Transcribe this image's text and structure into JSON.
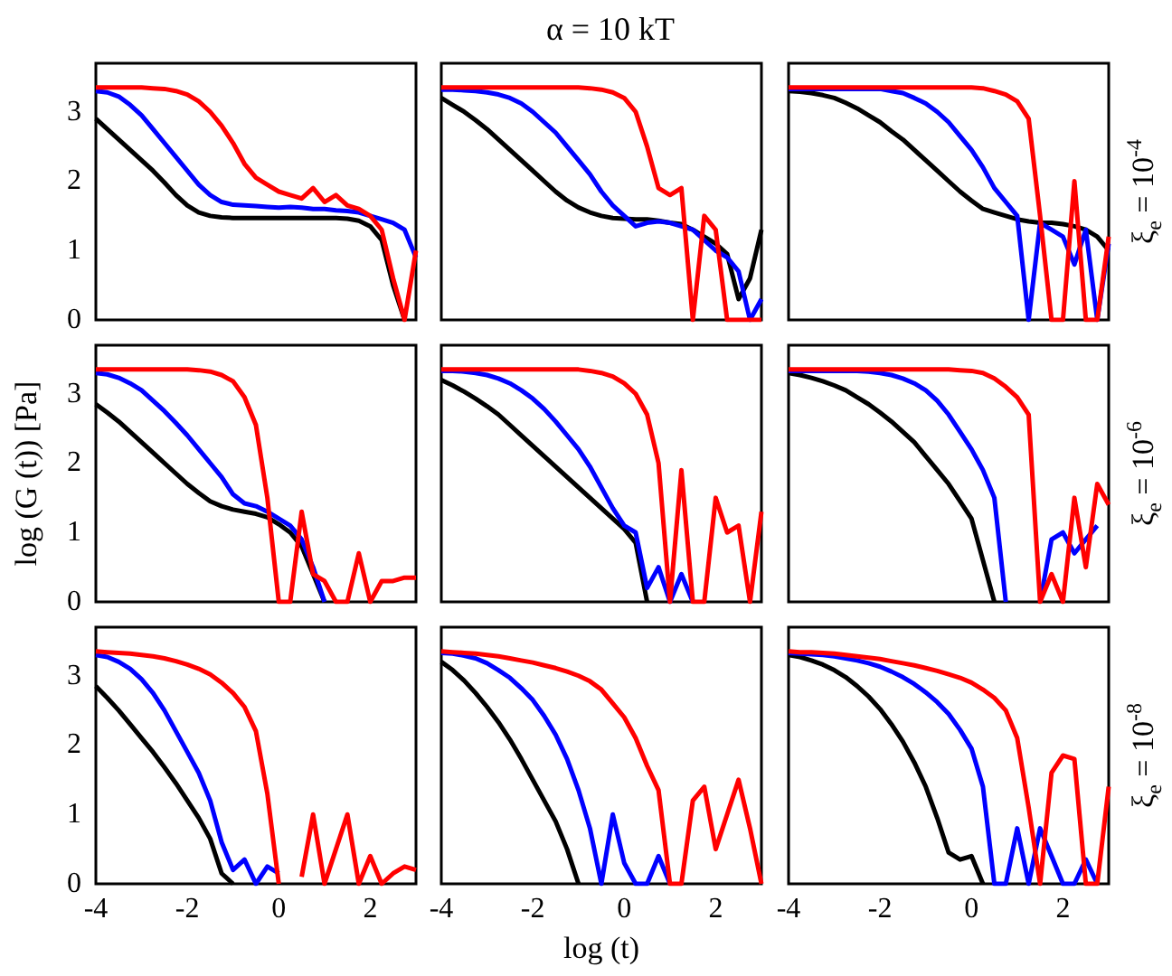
{
  "chart_data": [
    {
      "type": "line",
      "tick_labels": "y",
      "xlim": [
        -4,
        3
      ],
      "xticks": [
        -4,
        -2,
        0,
        2
      ],
      "ylim": [
        0,
        3.7
      ],
      "yticks": [
        0,
        1,
        2,
        3
      ],
      "x": [
        -4,
        -3.75,
        -3.5,
        -3.25,
        -3,
        -2.75,
        -2.5,
        -2.25,
        -2,
        -1.75,
        -1.5,
        -1.25,
        -1,
        -0.75,
        -0.5,
        -0.25,
        0,
        0.25,
        0.5,
        0.75,
        1,
        1.25,
        1.5,
        1.75,
        2,
        2.25,
        2.5,
        2.75,
        3
      ],
      "series": [
        {
          "color": "#000000",
          "values": [
            2.9,
            2.75,
            2.6,
            2.45,
            2.3,
            2.15,
            1.98,
            1.8,
            1.65,
            1.55,
            1.5,
            1.48,
            1.47,
            1.47,
            1.47,
            1.47,
            1.47,
            1.47,
            1.47,
            1.47,
            1.47,
            1.47,
            1.46,
            1.43,
            1.35,
            1.15,
            0.5,
            0,
            null
          ]
        },
        {
          "color": "#0000ff",
          "values": [
            3.3,
            3.28,
            3.22,
            3.1,
            2.95,
            2.75,
            2.55,
            2.35,
            2.15,
            1.95,
            1.8,
            1.7,
            1.66,
            1.65,
            1.64,
            1.63,
            1.62,
            1.63,
            1.62,
            1.6,
            1.6,
            1.58,
            1.57,
            1.55,
            1.5,
            1.45,
            1.4,
            1.3,
            0.9
          ]
        },
        {
          "color": "#ff0000",
          "values": [
            3.35,
            3.35,
            3.35,
            3.35,
            3.35,
            3.34,
            3.33,
            3.3,
            3.25,
            3.15,
            3.0,
            2.8,
            2.55,
            2.25,
            2.05,
            1.95,
            1.85,
            1.8,
            1.75,
            1.9,
            1.7,
            1.8,
            1.65,
            1.6,
            1.5,
            1.3,
            0.6,
            0,
            1.0
          ]
        }
      ]
    },
    {
      "type": "line",
      "title": "α = 10 kT",
      "tick_labels": false,
      "xlim": [
        -4,
        3
      ],
      "xticks": [
        -4,
        -2,
        0,
        2
      ],
      "ylim": [
        0,
        3.7
      ],
      "yticks": [
        0,
        1,
        2,
        3
      ],
      "x": [
        -4,
        -3.75,
        -3.5,
        -3.25,
        -3,
        -2.75,
        -2.5,
        -2.25,
        -2,
        -1.75,
        -1.5,
        -1.25,
        -1,
        -0.75,
        -0.5,
        -0.25,
        0,
        0.25,
        0.5,
        0.75,
        1,
        1.25,
        1.5,
        1.75,
        2,
        2.25,
        2.5,
        2.75,
        3
      ],
      "series": [
        {
          "color": "#000000",
          "values": [
            3.2,
            3.1,
            3.0,
            2.88,
            2.75,
            2.6,
            2.45,
            2.3,
            2.15,
            2.0,
            1.85,
            1.72,
            1.62,
            1.55,
            1.5,
            1.47,
            1.46,
            1.45,
            1.45,
            1.43,
            1.4,
            1.38,
            1.3,
            1.2,
            1.1,
            0.95,
            0.3,
            0.6,
            1.3
          ]
        },
        {
          "color": "#0000ff",
          "values": [
            3.32,
            3.32,
            3.31,
            3.3,
            3.28,
            3.25,
            3.2,
            3.12,
            3.0,
            2.85,
            2.7,
            2.5,
            2.3,
            2.1,
            1.85,
            1.65,
            1.5,
            1.35,
            1.4,
            1.42,
            1.4,
            1.35,
            1.3,
            1.15,
            1.0,
            0.9,
            0.7,
            0,
            0.3
          ]
        },
        {
          "color": "#ff0000",
          "values": [
            3.35,
            3.35,
            3.35,
            3.35,
            3.35,
            3.35,
            3.35,
            3.35,
            3.35,
            3.35,
            3.35,
            3.35,
            3.35,
            3.34,
            3.32,
            3.28,
            3.2,
            3.0,
            2.5,
            1.9,
            1.8,
            1.9,
            0,
            1.5,
            1.3,
            0,
            0,
            0,
            0
          ]
        }
      ]
    },
    {
      "type": "line",
      "y2label": "ξ$_{e}$ = 10$^{-4}$",
      "tick_labels": false,
      "xlim": [
        -4,
        3
      ],
      "xticks": [
        -4,
        -2,
        0,
        2
      ],
      "ylim": [
        0,
        3.7
      ],
      "yticks": [
        0,
        1,
        2,
        3
      ],
      "x": [
        -4,
        -3.75,
        -3.5,
        -3.25,
        -3,
        -2.75,
        -2.5,
        -2.25,
        -2,
        -1.75,
        -1.5,
        -1.25,
        -1,
        -0.75,
        -0.5,
        -0.25,
        0,
        0.25,
        0.5,
        0.75,
        1,
        1.25,
        1.5,
        1.75,
        2,
        2.25,
        2.5,
        2.75,
        3
      ],
      "series": [
        {
          "color": "#000000",
          "values": [
            3.3,
            3.29,
            3.27,
            3.24,
            3.2,
            3.13,
            3.05,
            2.95,
            2.85,
            2.72,
            2.6,
            2.45,
            2.3,
            2.15,
            2.0,
            1.85,
            1.72,
            1.6,
            1.55,
            1.5,
            1.45,
            1.42,
            1.4,
            1.4,
            1.38,
            1.35,
            1.3,
            1.2,
            1.0
          ]
        },
        {
          "color": "#0000ff",
          "values": [
            3.33,
            3.33,
            3.33,
            3.33,
            3.33,
            3.33,
            3.33,
            3.33,
            3.33,
            3.3,
            3.27,
            3.2,
            3.12,
            3.0,
            2.85,
            2.65,
            2.45,
            2.2,
            1.9,
            1.7,
            1.5,
            0,
            1.4,
            1.3,
            1.2,
            0.8,
            1.3,
            0,
            1.1
          ]
        },
        {
          "color": "#ff0000",
          "values": [
            3.35,
            3.35,
            3.35,
            3.35,
            3.35,
            3.35,
            3.35,
            3.35,
            3.35,
            3.35,
            3.35,
            3.35,
            3.35,
            3.35,
            3.35,
            3.35,
            3.35,
            3.34,
            3.3,
            3.25,
            3.15,
            2.9,
            1.5,
            0,
            0,
            2.0,
            0,
            0,
            1.2
          ]
        }
      ]
    },
    {
      "type": "line",
      "ylabel": "log (G (t)) [Pa]",
      "tick_labels": "y",
      "xlim": [
        -4,
        3
      ],
      "xticks": [
        -4,
        -2,
        0,
        2
      ],
      "ylim": [
        0,
        3.7
      ],
      "yticks": [
        0,
        1,
        2,
        3
      ],
      "x": [
        -4,
        -3.75,
        -3.5,
        -3.25,
        -3,
        -2.75,
        -2.5,
        -2.25,
        -2,
        -1.75,
        -1.5,
        -1.25,
        -1,
        -0.75,
        -0.5,
        -0.25,
        0,
        0.25,
        0.5,
        0.75,
        1,
        1.25,
        1.5,
        1.75,
        2,
        2.25,
        2.5,
        2.75,
        3
      ],
      "series": [
        {
          "color": "#000000",
          "values": [
            2.85,
            2.73,
            2.6,
            2.45,
            2.3,
            2.15,
            2.0,
            1.85,
            1.7,
            1.57,
            1.45,
            1.38,
            1.33,
            1.3,
            1.27,
            1.22,
            1.12,
            1.0,
            0.8,
            0.4,
            0,
            null,
            null,
            null,
            null,
            null,
            null,
            null,
            null
          ]
        },
        {
          "color": "#0000ff",
          "values": [
            3.3,
            3.28,
            3.23,
            3.15,
            3.05,
            2.9,
            2.75,
            2.58,
            2.4,
            2.2,
            2.0,
            1.8,
            1.55,
            1.42,
            1.38,
            1.3,
            1.2,
            1.1,
            0.9,
            0.5,
            0,
            null,
            null,
            null,
            null,
            null,
            null,
            null,
            null
          ]
        },
        {
          "color": "#ff0000",
          "values": [
            3.35,
            3.35,
            3.35,
            3.35,
            3.35,
            3.35,
            3.35,
            3.35,
            3.35,
            3.34,
            3.32,
            3.27,
            3.18,
            2.95,
            2.55,
            1.5,
            0,
            0,
            1.3,
            0.4,
            0.3,
            0,
            0,
            0.7,
            0,
            0.3,
            0.3,
            0.35,
            0.35
          ]
        }
      ]
    },
    {
      "type": "line",
      "tick_labels": false,
      "xlim": [
        -4,
        3
      ],
      "xticks": [
        -4,
        -2,
        0,
        2
      ],
      "ylim": [
        0,
        3.7
      ],
      "yticks": [
        0,
        1,
        2,
        3
      ],
      "x": [
        -4,
        -3.75,
        -3.5,
        -3.25,
        -3,
        -2.75,
        -2.5,
        -2.25,
        -2,
        -1.75,
        -1.5,
        -1.25,
        -1,
        -0.75,
        -0.5,
        -0.25,
        0,
        0.25,
        0.5,
        0.75,
        1,
        1.25,
        1.5,
        1.75,
        2,
        2.25,
        2.5,
        2.75,
        3
      ],
      "series": [
        {
          "color": "#000000",
          "values": [
            3.2,
            3.12,
            3.03,
            2.93,
            2.82,
            2.7,
            2.55,
            2.4,
            2.25,
            2.1,
            1.95,
            1.8,
            1.65,
            1.5,
            1.35,
            1.2,
            1.05,
            0.85,
            0,
            null,
            null,
            null,
            null,
            null,
            null,
            null,
            null,
            null,
            null
          ]
        },
        {
          "color": "#0000ff",
          "values": [
            3.33,
            3.33,
            3.32,
            3.3,
            3.27,
            3.22,
            3.15,
            3.05,
            2.93,
            2.78,
            2.6,
            2.4,
            2.2,
            1.95,
            1.65,
            1.35,
            1.1,
            1.0,
            0.2,
            0.5,
            0,
            0.4,
            0,
            null,
            null,
            null,
            null,
            null,
            null
          ]
        },
        {
          "color": "#ff0000",
          "values": [
            3.35,
            3.35,
            3.35,
            3.35,
            3.35,
            3.35,
            3.35,
            3.35,
            3.35,
            3.35,
            3.35,
            3.35,
            3.35,
            3.33,
            3.3,
            3.25,
            3.15,
            3.0,
            2.7,
            2.0,
            0,
            1.9,
            0,
            0,
            1.5,
            1.0,
            1.1,
            0,
            1.3
          ]
        }
      ]
    },
    {
      "type": "line",
      "y2label": "ξ$_{e}$ = 10$^{-6}$",
      "tick_labels": false,
      "xlim": [
        -4,
        3
      ],
      "xticks": [
        -4,
        -2,
        0,
        2
      ],
      "ylim": [
        0,
        3.7
      ],
      "yticks": [
        0,
        1,
        2,
        3
      ],
      "x": [
        -4,
        -3.75,
        -3.5,
        -3.25,
        -3,
        -2.75,
        -2.5,
        -2.25,
        -2,
        -1.75,
        -1.5,
        -1.25,
        -1,
        -0.75,
        -0.5,
        -0.25,
        0,
        0.25,
        0.5,
        0.75,
        1,
        1.25,
        1.5,
        1.75,
        2,
        2.25,
        2.5,
        2.75,
        3
      ],
      "series": [
        {
          "color": "#000000",
          "values": [
            3.3,
            3.27,
            3.23,
            3.18,
            3.12,
            3.05,
            2.95,
            2.85,
            2.73,
            2.6,
            2.45,
            2.3,
            2.1,
            1.9,
            1.7,
            1.45,
            1.2,
            0.6,
            0,
            null,
            null,
            null,
            null,
            null,
            null,
            null,
            null,
            null,
            null
          ]
        },
        {
          "color": "#0000ff",
          "values": [
            3.33,
            3.33,
            3.33,
            3.33,
            3.33,
            3.33,
            3.33,
            3.32,
            3.3,
            3.27,
            3.22,
            3.15,
            3.05,
            2.9,
            2.7,
            2.45,
            2.2,
            1.9,
            1.5,
            0,
            null,
            null,
            0,
            0.9,
            1.0,
            0.7,
            0.9,
            1.1,
            null
          ]
        },
        {
          "color": "#ff0000",
          "values": [
            3.35,
            3.35,
            3.35,
            3.35,
            3.35,
            3.35,
            3.35,
            3.35,
            3.35,
            3.35,
            3.35,
            3.35,
            3.35,
            3.35,
            3.35,
            3.34,
            3.33,
            3.3,
            3.22,
            3.1,
            2.95,
            2.7,
            0,
            0.4,
            0,
            1.5,
            0.5,
            1.7,
            1.4
          ]
        }
      ]
    },
    {
      "type": "line",
      "xlim": [
        -4,
        3
      ],
      "xticks": [
        -4,
        -2,
        0,
        2
      ],
      "ylim": [
        0,
        3.7
      ],
      "yticks": [
        0,
        1,
        2,
        3
      ],
      "x": [
        -4,
        -3.75,
        -3.5,
        -3.25,
        -3,
        -2.75,
        -2.5,
        -2.25,
        -2,
        -1.75,
        -1.5,
        -1.25,
        -1,
        -0.75,
        -0.5,
        -0.25,
        0,
        0.25,
        0.5,
        0.75,
        1,
        1.25,
        1.5,
        1.75,
        2,
        2.25,
        2.5,
        2.75,
        3
      ],
      "series": [
        {
          "color": "#000000",
          "values": [
            2.85,
            2.68,
            2.5,
            2.3,
            2.1,
            1.9,
            1.68,
            1.45,
            1.2,
            0.95,
            0.65,
            0.15,
            0,
            null,
            null,
            null,
            null,
            null,
            null,
            null,
            null,
            null,
            null,
            null,
            null,
            null,
            null,
            null,
            null
          ]
        },
        {
          "color": "#0000ff",
          "values": [
            3.3,
            3.27,
            3.2,
            3.1,
            2.95,
            2.75,
            2.5,
            2.2,
            1.9,
            1.6,
            1.2,
            0.6,
            0.2,
            0.35,
            0,
            0.25,
            0.15,
            null,
            null,
            null,
            null,
            null,
            null,
            null,
            null,
            null,
            null,
            null,
            null
          ]
        },
        {
          "color": "#ff0000",
          "values": [
            3.35,
            3.34,
            3.33,
            3.32,
            3.3,
            3.28,
            3.25,
            3.21,
            3.16,
            3.1,
            3.02,
            2.9,
            2.75,
            2.55,
            2.2,
            1.3,
            0,
            null,
            0.1,
            1.0,
            0,
            0.5,
            1.0,
            0,
            0.4,
            0,
            0.15,
            0.25,
            0.2
          ]
        }
      ]
    },
    {
      "type": "line",
      "xlabel": "log (t)",
      "tick_labels": "x",
      "xlim": [
        -4,
        3
      ],
      "xticks": [
        -4,
        -2,
        0,
        2
      ],
      "ylim": [
        0,
        3.7
      ],
      "yticks": [
        0,
        1,
        2,
        3
      ],
      "x": [
        -4,
        -3.75,
        -3.5,
        -3.25,
        -3,
        -2.75,
        -2.5,
        -2.25,
        -2,
        -1.75,
        -1.5,
        -1.25,
        -1,
        -0.75,
        -0.5,
        -0.25,
        0,
        0.25,
        0.5,
        0.75,
        1,
        1.25,
        1.5,
        1.75,
        2,
        2.25,
        2.5,
        2.75,
        3
      ],
      "series": [
        {
          "color": "#000000",
          "values": [
            3.2,
            3.08,
            2.93,
            2.75,
            2.55,
            2.33,
            2.08,
            1.8,
            1.5,
            1.2,
            0.9,
            0.5,
            0,
            null,
            null,
            null,
            null,
            null,
            null,
            null,
            null,
            null,
            null,
            null,
            null,
            null,
            null,
            null,
            null
          ]
        },
        {
          "color": "#0000ff",
          "values": [
            3.33,
            3.32,
            3.29,
            3.25,
            3.18,
            3.08,
            2.97,
            2.82,
            2.65,
            2.42,
            2.15,
            1.8,
            1.35,
            0.8,
            0,
            1.0,
            0.3,
            0,
            0,
            0.4,
            0,
            null,
            null,
            null,
            null,
            null,
            null,
            null,
            null
          ]
        },
        {
          "color": "#ff0000",
          "values": [
            3.35,
            3.34,
            3.33,
            3.32,
            3.3,
            3.28,
            3.25,
            3.22,
            3.19,
            3.15,
            3.11,
            3.06,
            3.0,
            2.92,
            2.8,
            2.6,
            2.4,
            2.1,
            1.7,
            1.35,
            0,
            0,
            1.2,
            1.4,
            0.5,
            1.0,
            1.5,
            0.8,
            0
          ]
        }
      ]
    },
    {
      "type": "line",
      "y2label": "ξ$_{e}$ = 10$^{-8}$",
      "tick_labels": "x",
      "xlim": [
        -4,
        3
      ],
      "xticks": [
        -4,
        -2,
        0,
        2
      ],
      "ylim": [
        0,
        3.7
      ],
      "yticks": [
        0,
        1,
        2,
        3
      ],
      "x": [
        -4,
        -3.75,
        -3.5,
        -3.25,
        -3,
        -2.75,
        -2.5,
        -2.25,
        -2,
        -1.75,
        -1.5,
        -1.25,
        -1,
        -0.75,
        -0.5,
        -0.25,
        0,
        0.25,
        0.5,
        0.75,
        1,
        1.25,
        1.5,
        1.75,
        2,
        2.25,
        2.5,
        2.75,
        3
      ],
      "series": [
        {
          "color": "#000000",
          "values": [
            3.3,
            3.27,
            3.22,
            3.16,
            3.08,
            2.98,
            2.85,
            2.7,
            2.52,
            2.3,
            2.05,
            1.75,
            1.4,
            0.95,
            0.45,
            0.35,
            0.4,
            0,
            null,
            null,
            null,
            null,
            null,
            null,
            null,
            null,
            null,
            null,
            null
          ]
        },
        {
          "color": "#0000ff",
          "values": [
            3.33,
            3.32,
            3.31,
            3.3,
            3.28,
            3.25,
            3.22,
            3.18,
            3.13,
            3.06,
            2.98,
            2.88,
            2.76,
            2.62,
            2.45,
            2.22,
            1.95,
            1.4,
            0,
            0,
            0.8,
            0,
            0.8,
            0.4,
            0,
            0,
            0.35,
            0,
            null
          ]
        },
        {
          "color": "#ff0000",
          "values": [
            3.35,
            3.34,
            3.34,
            3.33,
            3.32,
            3.3,
            3.28,
            3.26,
            3.24,
            3.21,
            3.18,
            3.15,
            3.11,
            3.07,
            3.02,
            2.97,
            2.9,
            2.8,
            2.68,
            2.5,
            2.1,
            1.1,
            0,
            1.6,
            1.85,
            1.8,
            0,
            0,
            1.4
          ]
        }
      ]
    }
  ]
}
